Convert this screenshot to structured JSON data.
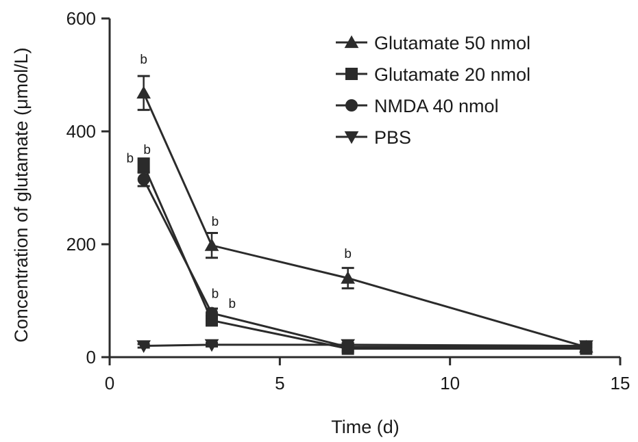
{
  "chart_data": {
    "type": "line",
    "xlabel": "Time (d)",
    "ylabel": "Concentration of glutamate (μmol/L)",
    "xlim": [
      0,
      15
    ],
    "ylim": [
      0,
      600
    ],
    "x_ticks": [
      0,
      5,
      10,
      15
    ],
    "y_ticks": [
      0,
      200,
      400,
      600
    ],
    "grid": false,
    "legend_position": "top-right",
    "line_color": "#2b2b2b",
    "series": [
      {
        "name": "Glutamate 50 nmol",
        "marker": "triangle-up",
        "x": [
          1,
          3,
          7,
          14
        ],
        "y": [
          468,
          198,
          140,
          18
        ],
        "error": [
          30,
          22,
          18,
          8
        ]
      },
      {
        "name": "Glutamate 20 nmol",
        "marker": "square",
        "x": [
          1,
          3,
          7,
          14
        ],
        "y": [
          340,
          65,
          15,
          15
        ],
        "error": [
          12,
          8,
          6,
          6
        ]
      },
      {
        "name": "NMDA 40 nmol",
        "marker": "circle",
        "x": [
          1,
          3,
          7,
          14
        ],
        "y": [
          315,
          78,
          18,
          18
        ],
        "error": [
          12,
          8,
          6,
          6
        ]
      },
      {
        "name": "PBS",
        "marker": "triangle-down",
        "x": [
          1,
          3,
          7,
          14
        ],
        "y": [
          20,
          22,
          22,
          20
        ],
        "error": [
          3,
          3,
          3,
          3
        ]
      }
    ],
    "annotations": [
      {
        "text": "b",
        "x": 1.0,
        "y": 520
      },
      {
        "text": "b",
        "x": 1.1,
        "y": 360
      },
      {
        "text": "b",
        "x": 0.6,
        "y": 345
      },
      {
        "text": "b",
        "x": 3.1,
        "y": 233
      },
      {
        "text": "b",
        "x": 3.1,
        "y": 105
      },
      {
        "text": "b",
        "x": 3.6,
        "y": 87
      },
      {
        "text": "b",
        "x": 7.0,
        "y": 176
      }
    ]
  }
}
